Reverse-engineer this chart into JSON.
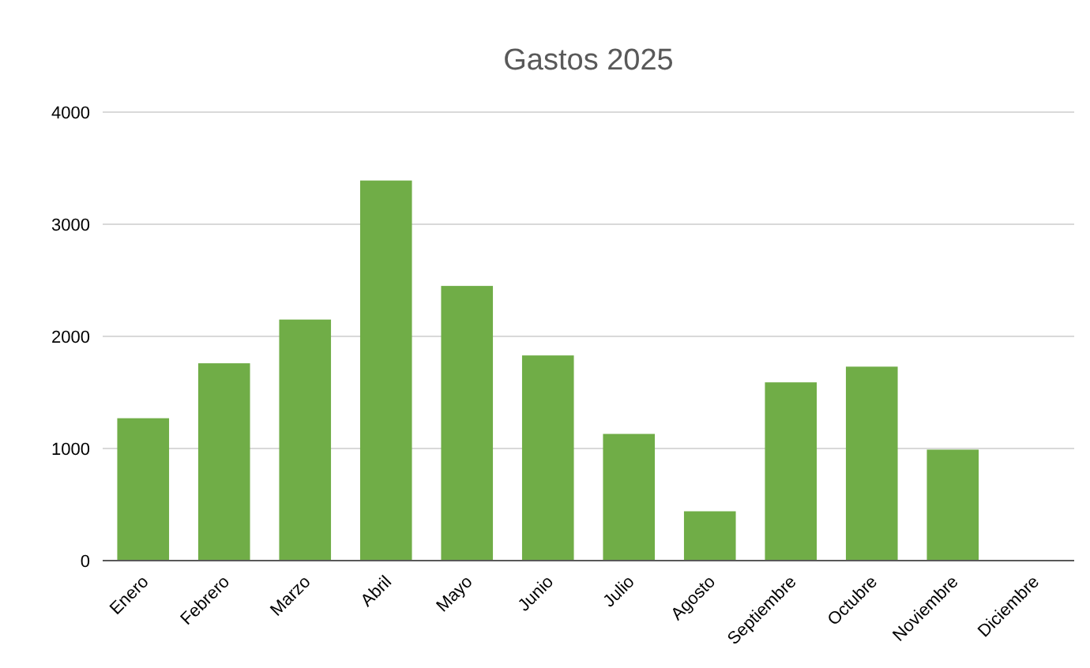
{
  "chart_data": {
    "type": "bar",
    "title": "Gastos 2025",
    "categories": [
      "Enero",
      "Febrero",
      "Marzo",
      "Abril",
      "Mayo",
      "Junio",
      "Julio",
      "Agosto",
      "Septiembre",
      "Octubre",
      "Noviembre",
      "Diciembre"
    ],
    "values": [
      1270,
      1760,
      2150,
      3390,
      2450,
      1830,
      1130,
      440,
      1590,
      1730,
      990,
      0
    ],
    "color": "#70ad47",
    "ylim": [
      0,
      4000
    ],
    "yticks": [
      0,
      1000,
      2000,
      3000,
      4000
    ],
    "grid": "y"
  }
}
